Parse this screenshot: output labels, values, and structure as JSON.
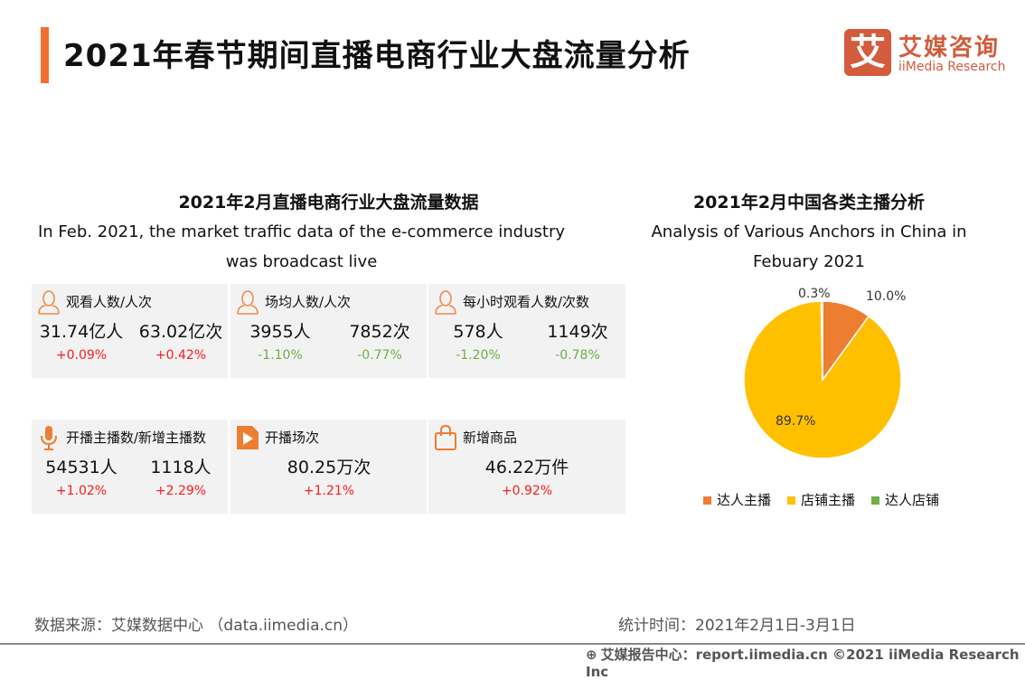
{
  "header": {
    "title": "2021年春节期间直播电商行业大盘流量分析",
    "logo_mark": "艾",
    "logo_cn": "艾媒咨询",
    "logo_en": "iiMedia Research"
  },
  "left": {
    "title": "2021年2月直播电商行业大盘流量数据",
    "subtitle_1": "In Feb. 2021, the market traffic data of the e-commerce industry",
    "subtitle_2": "was broadcast live",
    "cards": [
      {
        "label": "观看人数/人次",
        "icon": "user-icon",
        "values": [
          {
            "v": "31.74亿人",
            "p": "+0.09%",
            "trend": "up"
          },
          {
            "v": "63.02亿次",
            "p": "+0.42%",
            "trend": "up"
          }
        ]
      },
      {
        "label": "场均人数/人次",
        "icon": "user-icon",
        "values": [
          {
            "v": "3955人",
            "p": "-1.10%",
            "trend": "down"
          },
          {
            "v": "7852次",
            "p": "-0.77%",
            "trend": "down"
          }
        ]
      },
      {
        "label": "每小时观看人数/次数",
        "icon": "user-icon",
        "values": [
          {
            "v": "578人",
            "p": "-1.20%",
            "trend": "down"
          },
          {
            "v": "1149次",
            "p": "-0.78%",
            "trend": "down"
          }
        ]
      },
      {
        "label": "开播主播数/新增主播数",
        "icon": "microphone-icon",
        "values": [
          {
            "v": "54531人",
            "p": "+1.02%",
            "trend": "up"
          },
          {
            "v": "1118人",
            "p": "+2.29%",
            "trend": "up"
          }
        ]
      },
      {
        "label": "开播场次",
        "icon": "video-file-icon",
        "values": [
          {
            "v": "80.25万次",
            "p": "+1.21%",
            "trend": "up"
          }
        ]
      },
      {
        "label": "新增商品",
        "icon": "shopping-bag-icon",
        "values": [
          {
            "v": "46.22万件",
            "p": "+0.92%",
            "trend": "up"
          }
        ]
      }
    ]
  },
  "chart_data": {
    "type": "pie",
    "title": "2021年2月中国各类主播分析",
    "subtitle_1": "Analysis of Various Anchors in China in",
    "subtitle_2": "Febuary 2021",
    "slices": [
      {
        "name": "达人主播",
        "value": 10.0,
        "label": "10.0%",
        "color": "#ed7d31"
      },
      {
        "name": "店铺主播",
        "value": 89.7,
        "label": "89.7%",
        "color": "#ffc000"
      },
      {
        "name": "达人店铺",
        "value": 0.3,
        "label": "0.3%",
        "color": "#70ad47"
      }
    ],
    "legend": "bottom"
  },
  "footer": {
    "source": "数据来源：艾媒数据中心 （data.iimedia.cn）",
    "time": "统计时间：2021年2月1日-3月1日",
    "copyright": "艾媒报告中心：report.iimedia.cn   ©2021  iiMedia Research  Inc"
  },
  "colors": {
    "accent": "#f07030",
    "brand": "#d35c3c",
    "up": "#ff1a1a",
    "down": "#70ad47"
  }
}
